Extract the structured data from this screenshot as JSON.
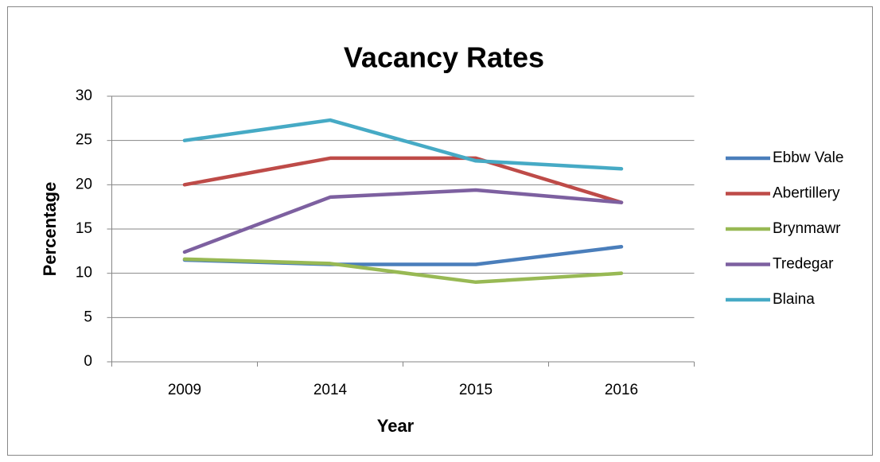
{
  "chart_data": {
    "type": "line",
    "title": "Vacancy Rates",
    "x_label": "Year",
    "y_label": "Percentage",
    "categories": [
      "2009",
      "2014",
      "2015",
      "2016"
    ],
    "series": [
      {
        "name": "Ebbw Vale",
        "color": "#4a7ebb",
        "values": [
          11.5,
          11,
          11,
          13
        ]
      },
      {
        "name": "Abertillery",
        "color": "#be4b48",
        "values": [
          20,
          23,
          23,
          18
        ]
      },
      {
        "name": "Brynmawr",
        "color": "#98b954",
        "values": [
          11.6,
          11.1,
          9,
          10
        ]
      },
      {
        "name": "Tredegar",
        "color": "#7d60a0",
        "values": [
          12.4,
          18.6,
          19.4,
          18
        ]
      },
      {
        "name": "Blaina",
        "color": "#46aac5",
        "values": [
          25,
          27.3,
          22.7,
          21.8
        ]
      }
    ],
    "ylim": [
      0,
      30
    ],
    "yticks": [
      0,
      5,
      10,
      15,
      20,
      25,
      30
    ],
    "grid": true,
    "legend": "right"
  }
}
